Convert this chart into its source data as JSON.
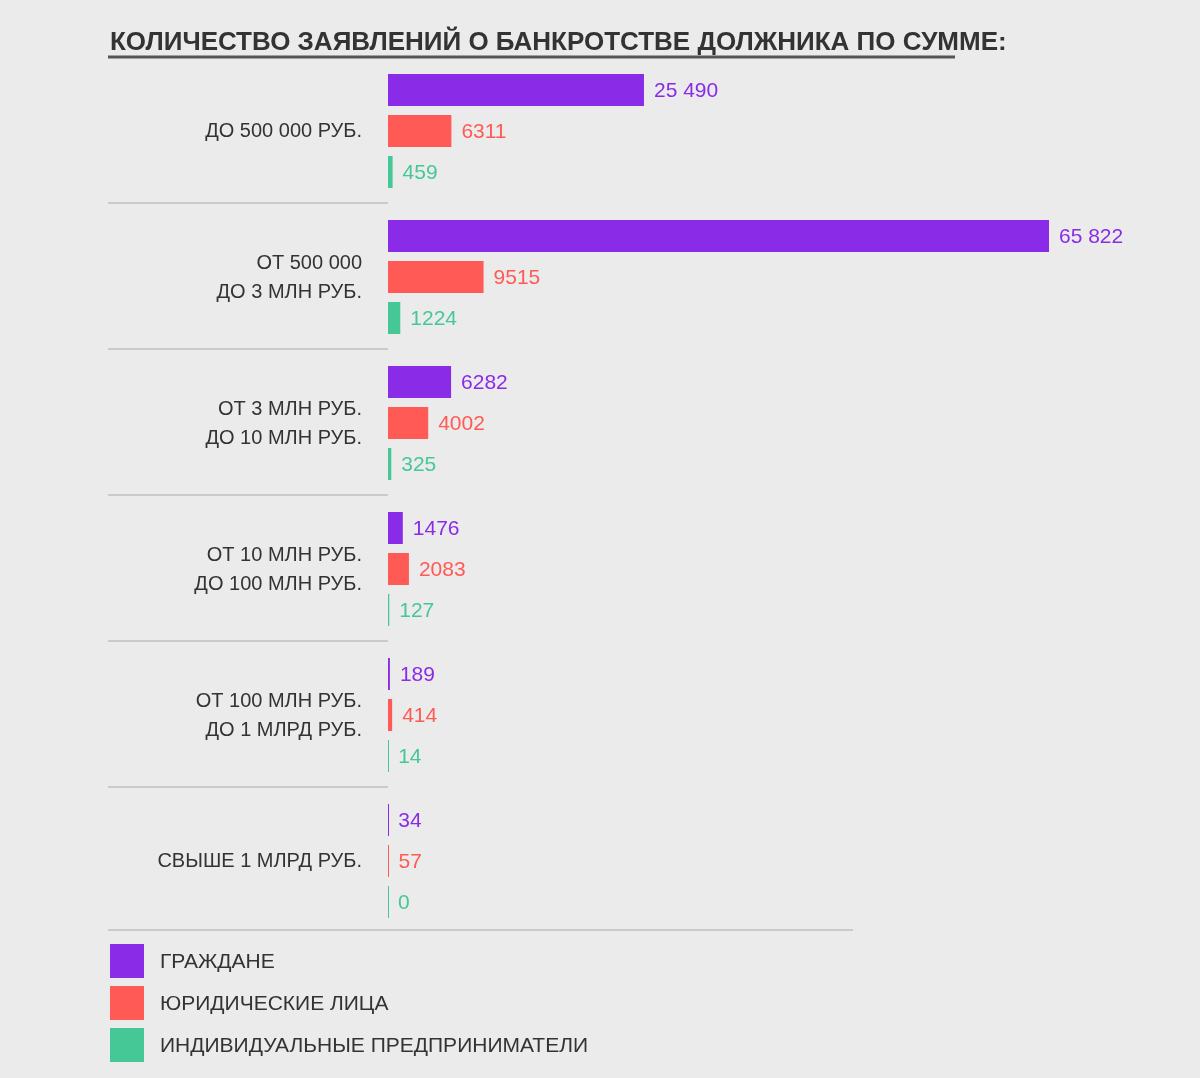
{
  "chart_data": {
    "type": "bar",
    "orientation": "horizontal",
    "title": "КОЛИЧЕСТВО ЗАЯВЛЕНИЙ О БАНКРОТСТВЕ ДОЛЖНИКА ПО СУММЕ:",
    "categories": [
      "ДО 500 000 РУБ.",
      "ОТ 500 000\nДО 3 МЛН РУБ.",
      "ОТ 3 МЛН РУБ.\nДО 10 МЛН РУБ.",
      "ОТ 10 МЛН РУБ.\nДО 100 МЛН РУБ.",
      "ОТ 100 МЛН РУБ.\nДО 1 МЛРД РУБ.",
      "СВЫШЕ 1 МЛРД РУБ."
    ],
    "series": [
      {
        "name": "ГРАЖДАНЕ",
        "color": "#8a2be8",
        "values": [
          25490,
          65822,
          6282,
          1476,
          189,
          34
        ],
        "value_labels": [
          "25 490",
          "65 822",
          "6282",
          "1476",
          "189",
          "34"
        ]
      },
      {
        "name": "ЮРИДИЧЕСКИЕ ЛИЦА",
        "color": "#ff5a55",
        "values": [
          6311,
          9515,
          4002,
          2083,
          414,
          57
        ],
        "value_labels": [
          "6311",
          "9515",
          "4002",
          "2083",
          "414",
          "57"
        ]
      },
      {
        "name": "ИНДИВИДУАЛЬНЫЕ ПРЕДПРИНИМАТЕЛИ",
        "color": "#45c896",
        "values": [
          459,
          1224,
          325,
          127,
          14,
          0
        ],
        "value_labels": [
          "459",
          "1224",
          "325",
          "127",
          "14",
          "0"
        ]
      }
    ],
    "legend": "bottom left"
  }
}
